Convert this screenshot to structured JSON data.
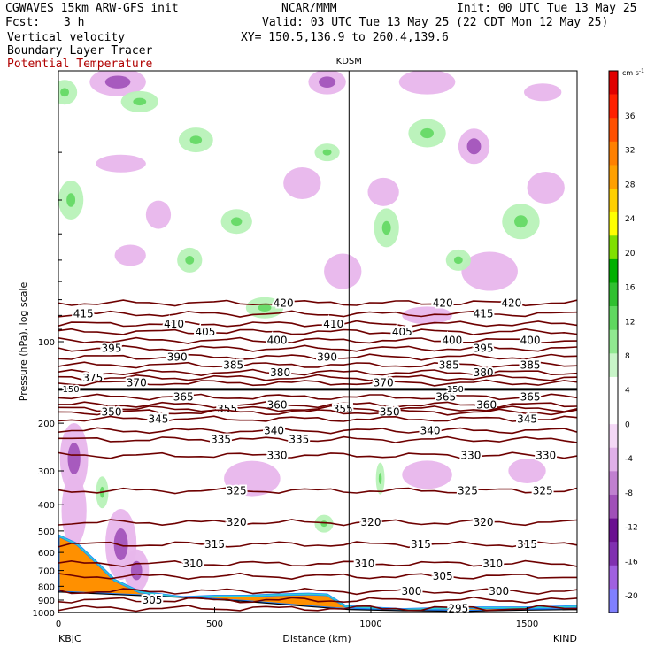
{
  "header": {
    "model": "CGWAVES 15km ARW-GFS init",
    "org": "NCAR/MMM",
    "init": "Init: 00 UTC Tue 13 May 25",
    "fcst_label": "Fcst:",
    "fcst_value": "3 h",
    "valid": "Valid: 03 UTC Tue 13 May 25 (22 CDT Mon 12 May 25)",
    "field1": "Vertical velocity",
    "field2": "Boundary Layer Tracer",
    "field3": "Potential Temperature",
    "xy": "XY= 150.5,136.9 to 260.4,139.6",
    "station_mid": "KDSM",
    "left_station": "KBJC",
    "right_station": "KIND"
  },
  "colors": {
    "theta_contour": "#6e0000",
    "tropopause": "#000000",
    "sinking": "#e8b6ec",
    "rising": "#b8f2b8"
  },
  "chart_data": {
    "type": "heatmap",
    "title": "",
    "xlabel": "Distance (km)",
    "ylabel": "Pressure (hPa), log scale",
    "xlim": [
      0,
      1660
    ],
    "ylim_hPa": [
      1000,
      10
    ],
    "x_ticks": [
      0,
      500,
      1000,
      1500
    ],
    "y_ticks": [
      100,
      200,
      300,
      400,
      500,
      600,
      700,
      800,
      900,
      1000
    ],
    "station_marker_km": 930,
    "colorbar": {
      "unit": "cm s",
      "unit_exp": "-1",
      "levels": [
        -20,
        -16,
        -12,
        -8,
        -4,
        0,
        4,
        8,
        12,
        16,
        20,
        24,
        28,
        32,
        36
      ],
      "colors": [
        "#8080ff",
        "#a060e0",
        "#8030b0",
        "#6a1090",
        "#a050b8",
        "#c080d0",
        "#e0b0e8",
        "#f4d8f6",
        "#ffffff",
        "#ffffff",
        "#c8f5c8",
        "#90e890",
        "#60d860",
        "#30c030",
        "#00b000",
        "#80e000",
        "#ffff00",
        "#ffd000",
        "#ffa000",
        "#ff8000",
        "#ff5000",
        "#ff2000",
        "#e00000"
      ]
    },
    "theta_contours": [
      {
        "label": "420",
        "p": 72,
        "labels_km": [
          720,
          1230,
          1450
        ]
      },
      {
        "label": "415",
        "p": 79,
        "labels_km": [
          80,
          1360
        ]
      },
      {
        "label": "410",
        "p": 86,
        "labels_km": [
          370,
          880
        ]
      },
      {
        "label": "405",
        "p": 92,
        "labels_km": [
          470,
          1100
        ]
      },
      {
        "label": "400",
        "p": 99,
        "labels_km": [
          700,
          1260,
          1510
        ]
      },
      {
        "label": "395",
        "p": 106,
        "labels_km": [
          170,
          1360
        ]
      },
      {
        "label": "390",
        "p": 114,
        "labels_km": [
          380,
          860
        ]
      },
      {
        "label": "385",
        "p": 122,
        "labels_km": [
          560,
          1250,
          1510
        ]
      },
      {
        "label": "380",
        "p": 130,
        "labels_km": [
          710,
          1360
        ]
      },
      {
        "label": "375",
        "p": 136,
        "labels_km": [
          110
        ]
      },
      {
        "label": "370",
        "p": 142,
        "labels_km": [
          250,
          1040
        ]
      },
      {
        "label": "365",
        "p": 160,
        "labels_km": [
          400,
          1240,
          1510
        ]
      },
      {
        "label": "360",
        "p": 171,
        "labels_km": [
          700,
          1370
        ]
      },
      {
        "label": "355",
        "p": 177,
        "labels_km": [
          540,
          910
        ]
      },
      {
        "label": "350",
        "p": 182,
        "labels_km": [
          170,
          1060
        ]
      },
      {
        "label": "345",
        "p": 193,
        "labels_km": [
          320,
          1500
        ]
      },
      {
        "label": "340",
        "p": 213,
        "labels_km": [
          690,
          1190
        ]
      },
      {
        "label": "335",
        "p": 230,
        "labels_km": [
          520,
          770
        ]
      },
      {
        "label": "330",
        "p": 263,
        "labels_km": [
          700,
          1320,
          1560
        ]
      },
      {
        "label": "325",
        "p": 355,
        "labels_km": [
          570,
          1310,
          1550
        ]
      },
      {
        "label": "320",
        "p": 465,
        "labels_km": [
          570,
          1000,
          1360
        ]
      },
      {
        "label": "315",
        "p": 560,
        "labels_km": [
          500,
          1160,
          1500
        ]
      },
      {
        "label": "310",
        "p": 660,
        "labels_km": [
          430,
          980,
          1390
        ]
      },
      {
        "label": "305",
        "p": 735,
        "labels_km": [
          1230
        ]
      },
      {
        "label": "300",
        "p": 835,
        "labels_km": [
          1130,
          1410
        ]
      },
      {
        "label": "305",
        "p": 900,
        "labels_km": [
          300
        ]
      },
      {
        "label": "295",
        "p": 965,
        "labels_km": [
          1280
        ]
      }
    ],
    "tropopause": {
      "label": "150",
      "p": 150
    },
    "terrain_hPa": [
      {
        "x": 0,
        "p": 840
      },
      {
        "x": 200,
        "p": 860
      },
      {
        "x": 400,
        "p": 880
      },
      {
        "x": 600,
        "p": 910
      },
      {
        "x": 800,
        "p": 950
      },
      {
        "x": 930,
        "p": 975
      },
      {
        "x": 1100,
        "p": 985
      },
      {
        "x": 1300,
        "p": 990
      },
      {
        "x": 1500,
        "p": 980
      },
      {
        "x": 1660,
        "p": 975
      }
    ],
    "boundary_layer_top_hPa": [
      {
        "x": 0,
        "p": 520
      },
      {
        "x": 60,
        "p": 560
      },
      {
        "x": 120,
        "p": 650
      },
      {
        "x": 180,
        "p": 760
      },
      {
        "x": 260,
        "p": 840
      },
      {
        "x": 400,
        "p": 880
      },
      {
        "x": 500,
        "p": 870
      },
      {
        "x": 600,
        "p": 870
      },
      {
        "x": 700,
        "p": 860
      },
      {
        "x": 800,
        "p": 855
      },
      {
        "x": 860,
        "p": 860
      },
      {
        "x": 920,
        "p": 950
      },
      {
        "x": 1100,
        "p": 975
      },
      {
        "x": 1300,
        "p": 960
      },
      {
        "x": 1500,
        "p": 960
      },
      {
        "x": 1660,
        "p": 950
      }
    ],
    "updrafts": [
      {
        "x": 20,
        "p": 12,
        "rx": 40,
        "ry": 14
      },
      {
        "x": 260,
        "p": 13,
        "rx": 60,
        "ry": 12
      },
      {
        "x": 440,
        "p": 18,
        "rx": 55,
        "ry": 14
      },
      {
        "x": 860,
        "p": 20,
        "rx": 40,
        "ry": 10
      },
      {
        "x": 1180,
        "p": 17,
        "rx": 60,
        "ry": 16
      },
      {
        "x": 40,
        "p": 30,
        "rx": 40,
        "ry": 22
      },
      {
        "x": 570,
        "p": 36,
        "rx": 50,
        "ry": 14
      },
      {
        "x": 1050,
        "p": 38,
        "rx": 40,
        "ry": 22
      },
      {
        "x": 1480,
        "p": 36,
        "rx": 60,
        "ry": 20
      },
      {
        "x": 420,
        "p": 50,
        "rx": 40,
        "ry": 14
      },
      {
        "x": 1280,
        "p": 50,
        "rx": 40,
        "ry": 12
      },
      {
        "x": 660,
        "p": 75,
        "rx": 60,
        "ry": 12
      },
      {
        "x": 140,
        "p": 360,
        "rx": 20,
        "ry": 18
      },
      {
        "x": 1030,
        "p": 320,
        "rx": 14,
        "ry": 18
      },
      {
        "x": 850,
        "p": 470,
        "rx": 30,
        "ry": 10
      }
    ],
    "downdrafts": [
      {
        "x": 190,
        "p": 11,
        "rx": 90,
        "ry": 16,
        "strong": true
      },
      {
        "x": 860,
        "p": 11,
        "rx": 60,
        "ry": 14,
        "strong": true
      },
      {
        "x": 1180,
        "p": 11,
        "rx": 90,
        "ry": 14
      },
      {
        "x": 1550,
        "p": 12,
        "rx": 60,
        "ry": 10
      },
      {
        "x": 200,
        "p": 22,
        "rx": 80,
        "ry": 10
      },
      {
        "x": 1330,
        "p": 19,
        "rx": 50,
        "ry": 20,
        "strong": true
      },
      {
        "x": 780,
        "p": 26,
        "rx": 60,
        "ry": 18
      },
      {
        "x": 320,
        "p": 34,
        "rx": 40,
        "ry": 16
      },
      {
        "x": 1040,
        "p": 28,
        "rx": 50,
        "ry": 16
      },
      {
        "x": 1560,
        "p": 27,
        "rx": 60,
        "ry": 18
      },
      {
        "x": 230,
        "p": 48,
        "rx": 50,
        "ry": 12
      },
      {
        "x": 910,
        "p": 55,
        "rx": 60,
        "ry": 20
      },
      {
        "x": 1380,
        "p": 55,
        "rx": 90,
        "ry": 22
      },
      {
        "x": 1180,
        "p": 80,
        "rx": 80,
        "ry": 10
      },
      {
        "x": 50,
        "p": 270,
        "rx": 45,
        "ry": 40,
        "strong": true
      },
      {
        "x": 50,
        "p": 420,
        "rx": 40,
        "ry": 40
      },
      {
        "x": 200,
        "p": 560,
        "rx": 50,
        "ry": 40,
        "strong": true
      },
      {
        "x": 250,
        "p": 700,
        "rx": 40,
        "ry": 24,
        "strong": true
      },
      {
        "x": 620,
        "p": 320,
        "rx": 90,
        "ry": 20
      },
      {
        "x": 1180,
        "p": 310,
        "rx": 80,
        "ry": 16
      },
      {
        "x": 1500,
        "p": 300,
        "rx": 60,
        "ry": 14
      }
    ]
  }
}
